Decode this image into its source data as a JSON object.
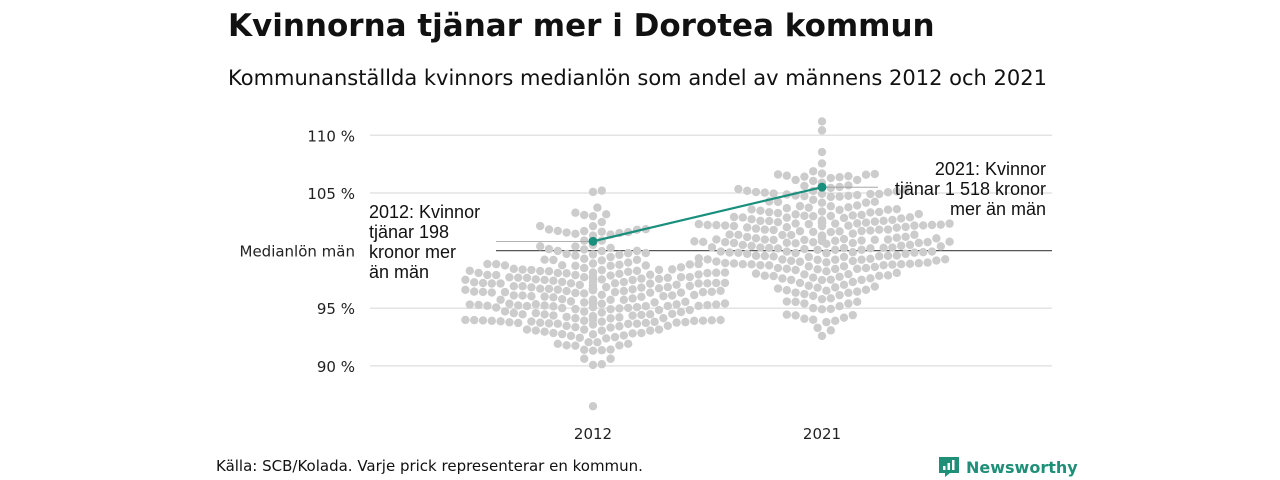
{
  "title": "Kvinnorna tjänar mer i Dorotea kommun",
  "subtitle": "Kommunanställda kvinnors medianlön som andel av männens 2012 och 2021",
  "source": "Källa: SCB/Kolada. Varje prick representerar en kommun.",
  "brand": {
    "name": "Newsworthy",
    "icon": "newsworthy-logo-icon",
    "color": "#1f8f78"
  },
  "chart_data": {
    "type": "scatter",
    "categories": [
      "2012",
      "2021"
    ],
    "ylim": [
      86,
      111.5
    ],
    "y_ticks": [
      90,
      95,
      105,
      110
    ],
    "y_tick_labels": [
      "90 %",
      "95 %",
      "105 %",
      "110 %"
    ],
    "reference_line": {
      "value": 100,
      "label": "Medianlön män"
    },
    "highlight": {
      "name": "Dorotea",
      "values": [
        100.8,
        105.5
      ],
      "color": "#1a8f7d",
      "annotations": [
        {
          "category": "2012",
          "text_lines": [
            "2012: Kvinnor",
            "tjänar 198",
            "kronor mer",
            "än män"
          ]
        },
        {
          "category": "2021",
          "text_lines": [
            "2021: Kvinnor",
            "tjänar 1 518 kronor",
            "mer än män"
          ]
        }
      ]
    },
    "background_dots": {
      "color": "#cccccc",
      "2012": {
        "min": 86.5,
        "max": 105.2,
        "median": 96.3,
        "n": 290
      },
      "2021": {
        "min": 92.6,
        "max": 111.2,
        "median": 101.2,
        "n": 290
      }
    },
    "grid": true
  }
}
